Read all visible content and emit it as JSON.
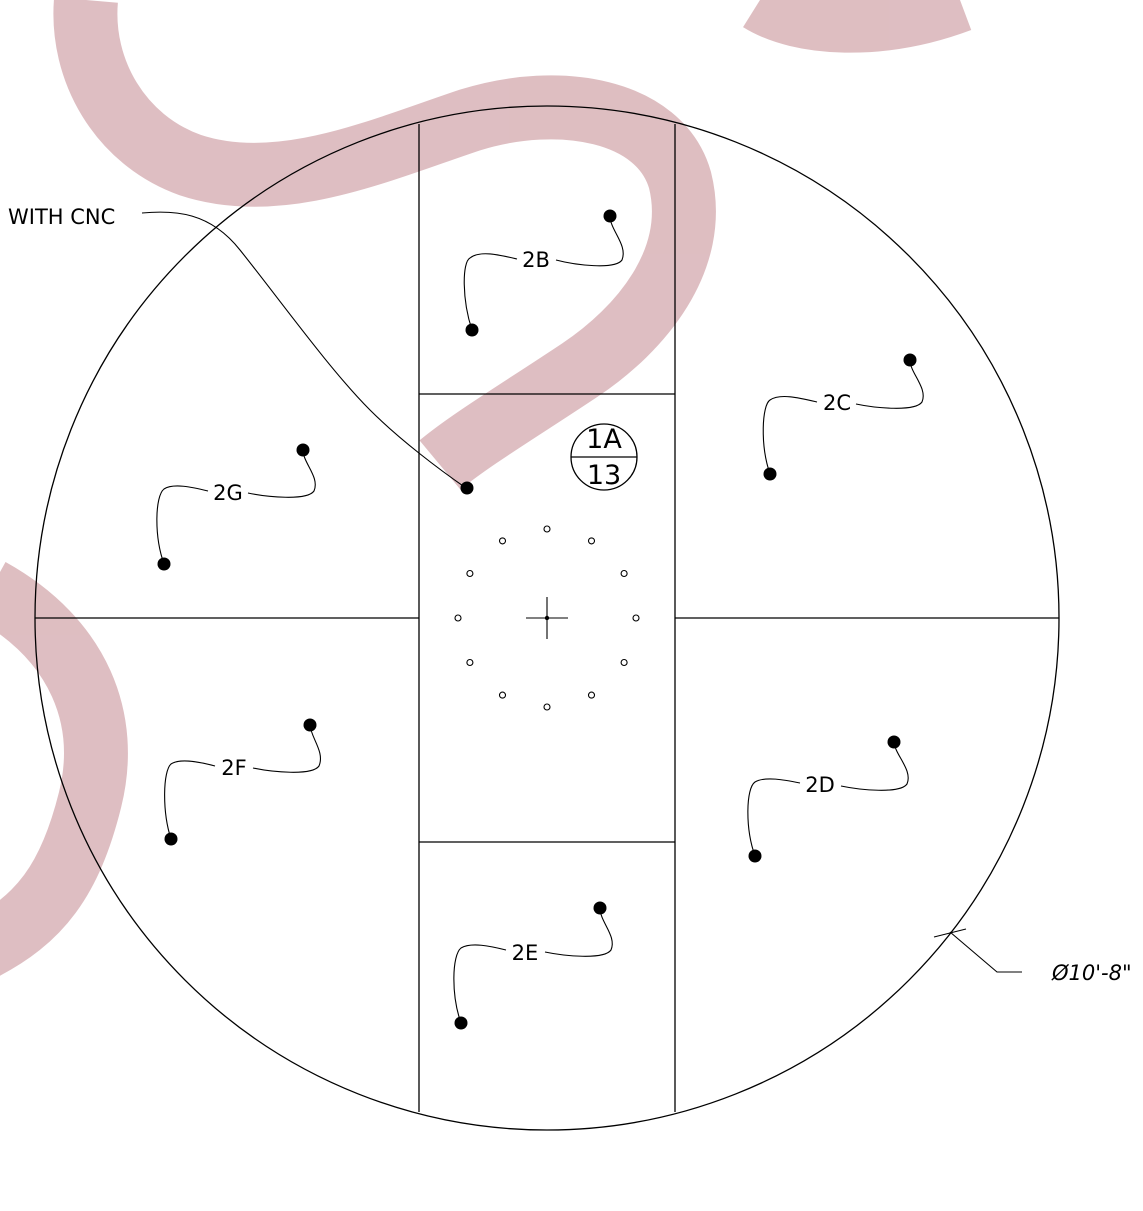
{
  "callouts": {
    "note_text": "WITH CNC",
    "diameter_text": "Ø10'-8\"",
    "detail_bubble": {
      "top": "1A",
      "bottom": "13"
    }
  },
  "panels": [
    {
      "id": "2B",
      "label": "2B"
    },
    {
      "id": "2C",
      "label": "2C"
    },
    {
      "id": "2D",
      "label": "2D"
    },
    {
      "id": "2E",
      "label": "2E"
    },
    {
      "id": "2F",
      "label": "2F"
    },
    {
      "id": "2G",
      "label": "2G"
    }
  ],
  "bolt_circle": {
    "hole_count": 12
  },
  "colors": {
    "line": "#000000",
    "watermark": "#d7b0b4"
  },
  "watermark": {
    "shape": "ribbon-swirl"
  }
}
